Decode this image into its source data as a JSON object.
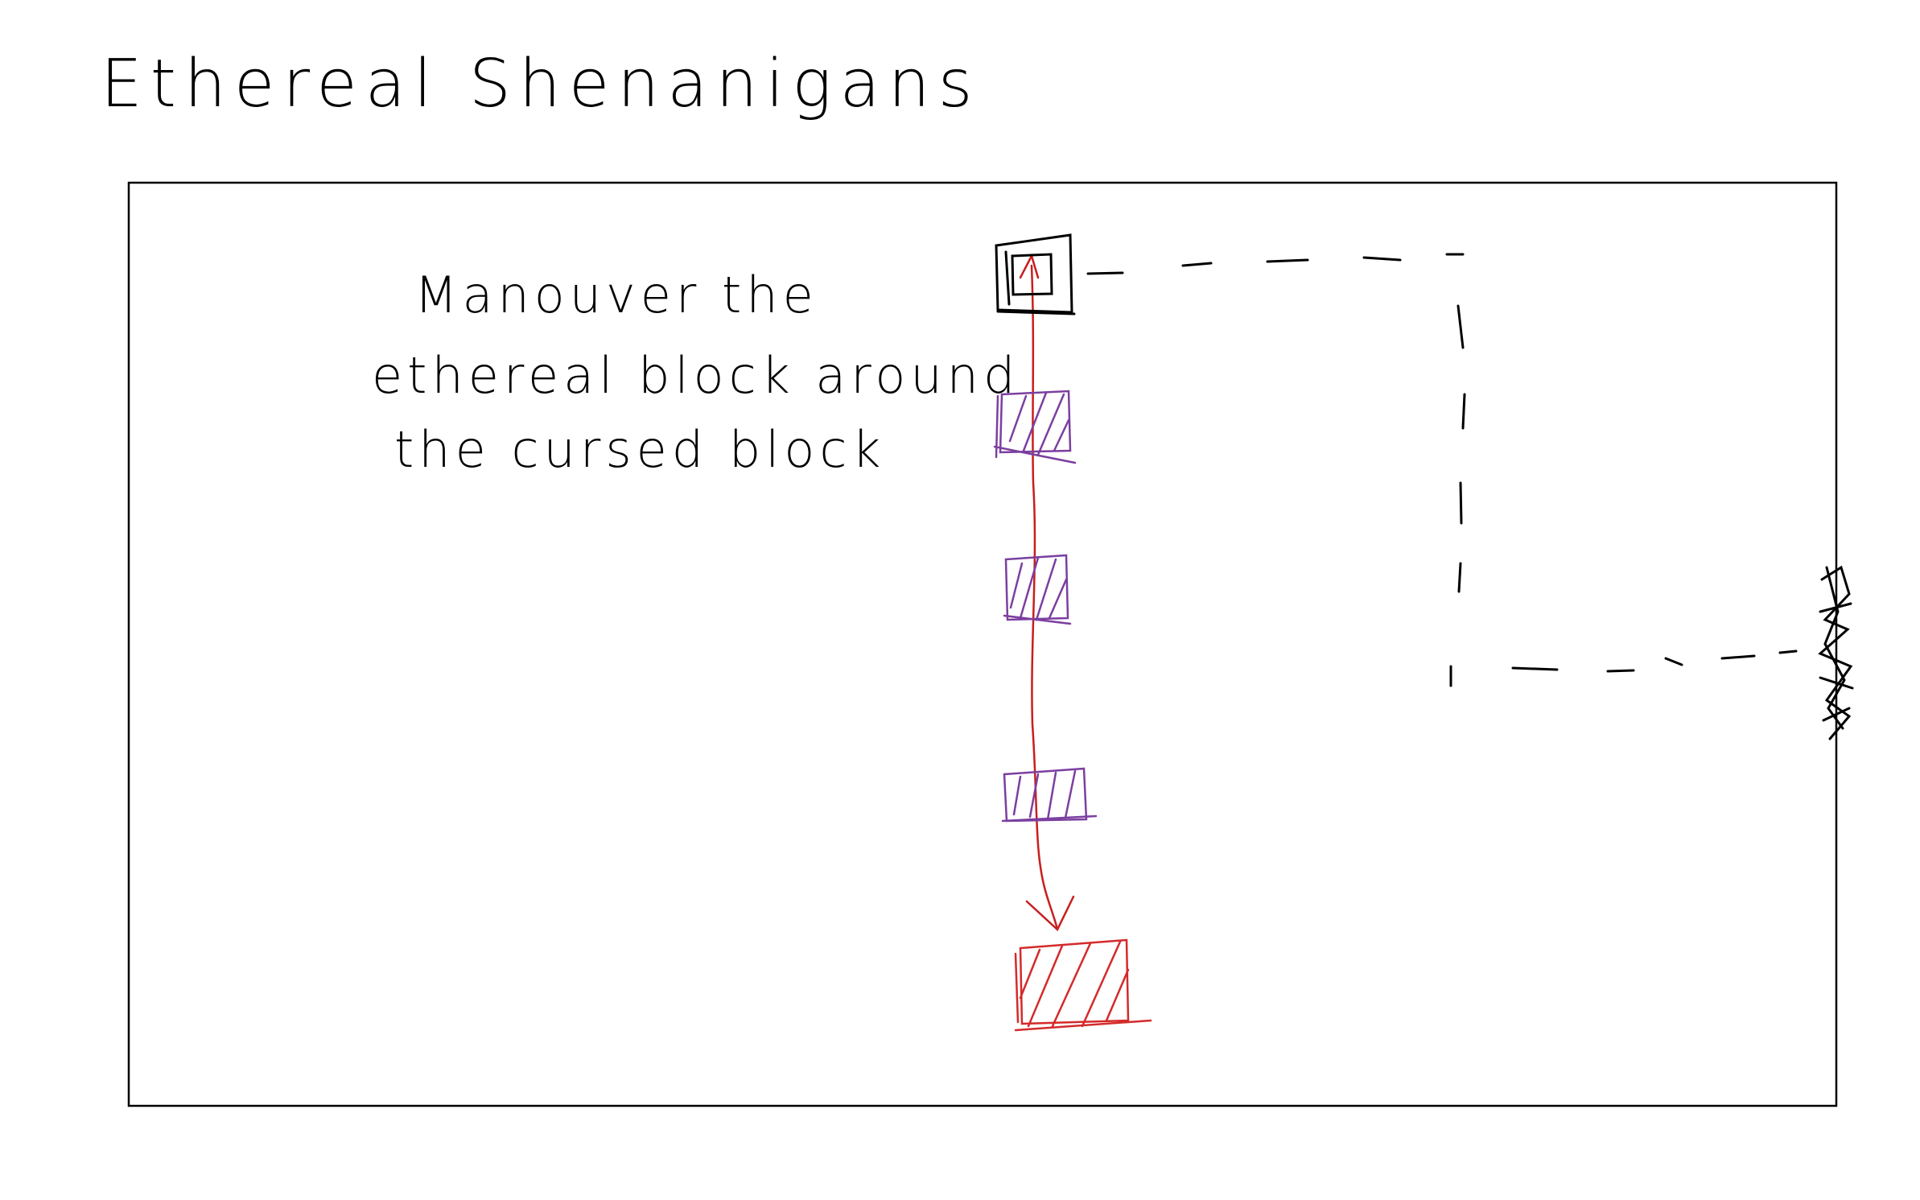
{
  "title": "Ethereal Shenanigans",
  "instruction": {
    "lines": [
      "Manouver the",
      "ethereal block around",
      "the cursed block"
    ]
  },
  "colors": {
    "ink": "#000000",
    "path": "#c81e1e",
    "platform": "#7b3fa0",
    "cursed": "#d42a2a"
  },
  "elements": {
    "player_block": "ethereal-block",
    "platforms": [
      "platform",
      "platform",
      "platform"
    ],
    "cursed_block": "cursed-block",
    "goal": "goal-marker",
    "route": "dashed-route",
    "trajectory": "fall-arrow"
  }
}
